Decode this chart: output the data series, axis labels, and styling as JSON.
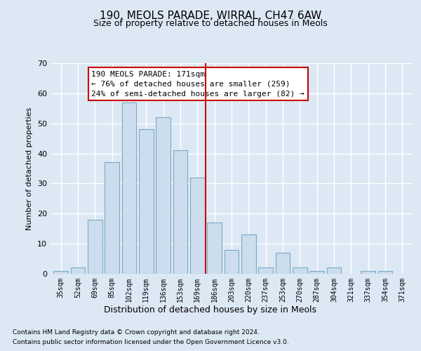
{
  "title": "190, MEOLS PARADE, WIRRAL, CH47 6AW",
  "subtitle": "Size of property relative to detached houses in Meols",
  "xlabel": "Distribution of detached houses by size in Meols",
  "ylabel": "Number of detached properties",
  "bar_color": "#ccdded",
  "bar_edge_color": "#7aaac8",
  "background_color": "#dde8f5",
  "grid_color": "#ffffff",
  "categories": [
    "35sqm",
    "52sqm",
    "69sqm",
    "85sqm",
    "102sqm",
    "119sqm",
    "136sqm",
    "153sqm",
    "169sqm",
    "186sqm",
    "203sqm",
    "220sqm",
    "237sqm",
    "253sqm",
    "270sqm",
    "287sqm",
    "304sqm",
    "321sqm",
    "337sqm",
    "354sqm",
    "371sqm"
  ],
  "values": [
    1,
    2,
    18,
    37,
    57,
    48,
    52,
    41,
    32,
    17,
    8,
    13,
    2,
    7,
    2,
    1,
    2,
    0,
    1,
    1,
    0
  ],
  "ylim": [
    0,
    70
  ],
  "yticks": [
    0,
    10,
    20,
    30,
    40,
    50,
    60,
    70
  ],
  "property_line_x": 8.5,
  "annotation_title": "190 MEOLS PARADE: 171sqm",
  "annotation_line1": "← 76% of detached houses are smaller (259)",
  "annotation_line2": "24% of semi-detached houses are larger (82) →",
  "annotation_box_color": "#ffffff",
  "annotation_box_edge_color": "#cc0000",
  "property_line_color": "#cc0000",
  "footnote1": "Contains HM Land Registry data © Crown copyright and database right 2024.",
  "footnote2": "Contains public sector information licensed under the Open Government Licence v3.0."
}
